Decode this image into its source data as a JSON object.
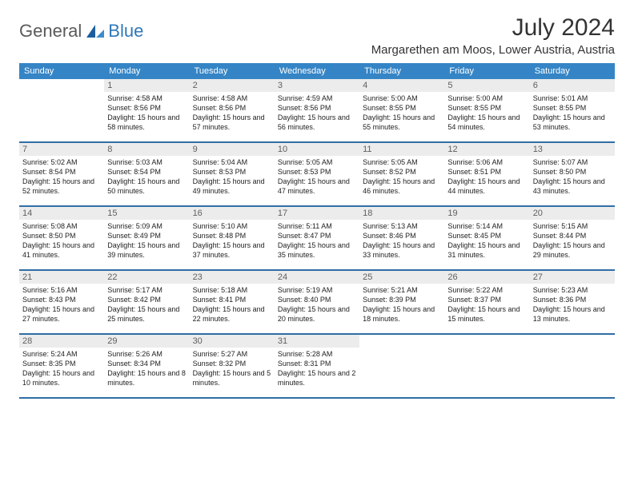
{
  "branding": {
    "text_general": "General",
    "text_blue": "Blue"
  },
  "header": {
    "month_title": "July 2024",
    "location": "Margarethen am Moos, Lower Austria, Austria"
  },
  "colors": {
    "header_bar": "#3585c6",
    "row_divider": "#2f6ea4",
    "daynum_bg": "#ececec",
    "daynum_text": "#606060",
    "body_text": "#222222",
    "logo_blue": "#2f78b8",
    "logo_gray": "#5a5a5a"
  },
  "calendar": {
    "days_of_week": [
      "Sunday",
      "Monday",
      "Tuesday",
      "Wednesday",
      "Thursday",
      "Friday",
      "Saturday"
    ],
    "weeks": [
      [
        {
          "n": "",
          "sr": "",
          "ss": "",
          "dl": ""
        },
        {
          "n": "1",
          "sr": "Sunrise: 4:58 AM",
          "ss": "Sunset: 8:56 PM",
          "dl": "Daylight: 15 hours and 58 minutes."
        },
        {
          "n": "2",
          "sr": "Sunrise: 4:58 AM",
          "ss": "Sunset: 8:56 PM",
          "dl": "Daylight: 15 hours and 57 minutes."
        },
        {
          "n": "3",
          "sr": "Sunrise: 4:59 AM",
          "ss": "Sunset: 8:56 PM",
          "dl": "Daylight: 15 hours and 56 minutes."
        },
        {
          "n": "4",
          "sr": "Sunrise: 5:00 AM",
          "ss": "Sunset: 8:55 PM",
          "dl": "Daylight: 15 hours and 55 minutes."
        },
        {
          "n": "5",
          "sr": "Sunrise: 5:00 AM",
          "ss": "Sunset: 8:55 PM",
          "dl": "Daylight: 15 hours and 54 minutes."
        },
        {
          "n": "6",
          "sr": "Sunrise: 5:01 AM",
          "ss": "Sunset: 8:55 PM",
          "dl": "Daylight: 15 hours and 53 minutes."
        }
      ],
      [
        {
          "n": "7",
          "sr": "Sunrise: 5:02 AM",
          "ss": "Sunset: 8:54 PM",
          "dl": "Daylight: 15 hours and 52 minutes."
        },
        {
          "n": "8",
          "sr": "Sunrise: 5:03 AM",
          "ss": "Sunset: 8:54 PM",
          "dl": "Daylight: 15 hours and 50 minutes."
        },
        {
          "n": "9",
          "sr": "Sunrise: 5:04 AM",
          "ss": "Sunset: 8:53 PM",
          "dl": "Daylight: 15 hours and 49 minutes."
        },
        {
          "n": "10",
          "sr": "Sunrise: 5:05 AM",
          "ss": "Sunset: 8:53 PM",
          "dl": "Daylight: 15 hours and 47 minutes."
        },
        {
          "n": "11",
          "sr": "Sunrise: 5:05 AM",
          "ss": "Sunset: 8:52 PM",
          "dl": "Daylight: 15 hours and 46 minutes."
        },
        {
          "n": "12",
          "sr": "Sunrise: 5:06 AM",
          "ss": "Sunset: 8:51 PM",
          "dl": "Daylight: 15 hours and 44 minutes."
        },
        {
          "n": "13",
          "sr": "Sunrise: 5:07 AM",
          "ss": "Sunset: 8:50 PM",
          "dl": "Daylight: 15 hours and 43 minutes."
        }
      ],
      [
        {
          "n": "14",
          "sr": "Sunrise: 5:08 AM",
          "ss": "Sunset: 8:50 PM",
          "dl": "Daylight: 15 hours and 41 minutes."
        },
        {
          "n": "15",
          "sr": "Sunrise: 5:09 AM",
          "ss": "Sunset: 8:49 PM",
          "dl": "Daylight: 15 hours and 39 minutes."
        },
        {
          "n": "16",
          "sr": "Sunrise: 5:10 AM",
          "ss": "Sunset: 8:48 PM",
          "dl": "Daylight: 15 hours and 37 minutes."
        },
        {
          "n": "17",
          "sr": "Sunrise: 5:11 AM",
          "ss": "Sunset: 8:47 PM",
          "dl": "Daylight: 15 hours and 35 minutes."
        },
        {
          "n": "18",
          "sr": "Sunrise: 5:13 AM",
          "ss": "Sunset: 8:46 PM",
          "dl": "Daylight: 15 hours and 33 minutes."
        },
        {
          "n": "19",
          "sr": "Sunrise: 5:14 AM",
          "ss": "Sunset: 8:45 PM",
          "dl": "Daylight: 15 hours and 31 minutes."
        },
        {
          "n": "20",
          "sr": "Sunrise: 5:15 AM",
          "ss": "Sunset: 8:44 PM",
          "dl": "Daylight: 15 hours and 29 minutes."
        }
      ],
      [
        {
          "n": "21",
          "sr": "Sunrise: 5:16 AM",
          "ss": "Sunset: 8:43 PM",
          "dl": "Daylight: 15 hours and 27 minutes."
        },
        {
          "n": "22",
          "sr": "Sunrise: 5:17 AM",
          "ss": "Sunset: 8:42 PM",
          "dl": "Daylight: 15 hours and 25 minutes."
        },
        {
          "n": "23",
          "sr": "Sunrise: 5:18 AM",
          "ss": "Sunset: 8:41 PM",
          "dl": "Daylight: 15 hours and 22 minutes."
        },
        {
          "n": "24",
          "sr": "Sunrise: 5:19 AM",
          "ss": "Sunset: 8:40 PM",
          "dl": "Daylight: 15 hours and 20 minutes."
        },
        {
          "n": "25",
          "sr": "Sunrise: 5:21 AM",
          "ss": "Sunset: 8:39 PM",
          "dl": "Daylight: 15 hours and 18 minutes."
        },
        {
          "n": "26",
          "sr": "Sunrise: 5:22 AM",
          "ss": "Sunset: 8:37 PM",
          "dl": "Daylight: 15 hours and 15 minutes."
        },
        {
          "n": "27",
          "sr": "Sunrise: 5:23 AM",
          "ss": "Sunset: 8:36 PM",
          "dl": "Daylight: 15 hours and 13 minutes."
        }
      ],
      [
        {
          "n": "28",
          "sr": "Sunrise: 5:24 AM",
          "ss": "Sunset: 8:35 PM",
          "dl": "Daylight: 15 hours and 10 minutes."
        },
        {
          "n": "29",
          "sr": "Sunrise: 5:26 AM",
          "ss": "Sunset: 8:34 PM",
          "dl": "Daylight: 15 hours and 8 minutes."
        },
        {
          "n": "30",
          "sr": "Sunrise: 5:27 AM",
          "ss": "Sunset: 8:32 PM",
          "dl": "Daylight: 15 hours and 5 minutes."
        },
        {
          "n": "31",
          "sr": "Sunrise: 5:28 AM",
          "ss": "Sunset: 8:31 PM",
          "dl": "Daylight: 15 hours and 2 minutes."
        },
        {
          "n": "",
          "sr": "",
          "ss": "",
          "dl": ""
        },
        {
          "n": "",
          "sr": "",
          "ss": "",
          "dl": ""
        },
        {
          "n": "",
          "sr": "",
          "ss": "",
          "dl": ""
        }
      ]
    ]
  }
}
